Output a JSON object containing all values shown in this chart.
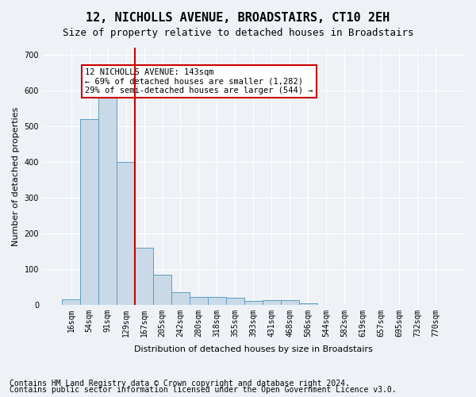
{
  "title": "12, NICHOLLS AVENUE, BROADSTAIRS, CT10 2EH",
  "subtitle": "Size of property relative to detached houses in Broadstairs",
  "xlabel": "Distribution of detached houses by size in Broadstairs",
  "ylabel": "Number of detached properties",
  "bar_values": [
    15,
    520,
    585,
    400,
    160,
    85,
    35,
    22,
    22,
    20,
    10,
    13,
    12,
    5,
    0,
    0,
    0,
    0,
    0,
    0,
    0
  ],
  "bar_labels": [
    "16sqm",
    "54sqm",
    "91sqm",
    "129sqm",
    "167sqm",
    "205sqm",
    "242sqm",
    "280sqm",
    "318sqm",
    "355sqm",
    "393sqm",
    "431sqm",
    "468sqm",
    "506sqm",
    "544sqm",
    "582sqm",
    "619sqm",
    "657sqm",
    "695sqm",
    "732sqm",
    "770sqm"
  ],
  "bar_color": "#c9d9e8",
  "bar_edge_color": "#5f9dc0",
  "vline_x": 3.5,
  "vline_color": "#cc0000",
  "ylim": [
    0,
    720
  ],
  "yticks": [
    0,
    100,
    200,
    300,
    400,
    500,
    600,
    700
  ],
  "annotation_title": "12 NICHOLLS AVENUE: 143sqm",
  "annotation_line1": "← 69% of detached houses are smaller (1,282)",
  "annotation_line2": "29% of semi-detached houses are larger (544) →",
  "annotation_box_color": "#cc0000",
  "footnote1": "Contains HM Land Registry data © Crown copyright and database right 2024.",
  "footnote2": "Contains public sector information licensed under the Open Government Licence v3.0.",
  "background_color": "#eef2f7",
  "plot_bg_color": "#eef2f7",
  "grid_color": "#ffffff",
  "title_fontsize": 11,
  "subtitle_fontsize": 9,
  "axis_label_fontsize": 8,
  "tick_fontsize": 7,
  "footnote_fontsize": 7
}
